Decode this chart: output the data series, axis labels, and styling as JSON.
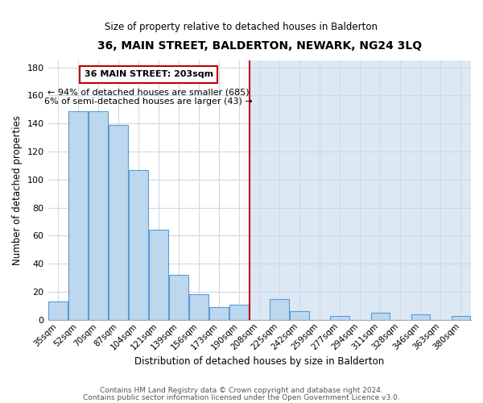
{
  "title": "36, MAIN STREET, BALDERTON, NEWARK, NG24 3LQ",
  "subtitle": "Size of property relative to detached houses in Balderton",
  "xlabel": "Distribution of detached houses by size in Balderton",
  "ylabel": "Number of detached properties",
  "bar_labels": [
    "35sqm",
    "52sqm",
    "70sqm",
    "87sqm",
    "104sqm",
    "121sqm",
    "139sqm",
    "156sqm",
    "173sqm",
    "190sqm",
    "208sqm",
    "225sqm",
    "242sqm",
    "259sqm",
    "277sqm",
    "294sqm",
    "311sqm",
    "328sqm",
    "346sqm",
    "363sqm",
    "380sqm"
  ],
  "bar_heights": [
    13,
    149,
    149,
    139,
    107,
    64,
    32,
    18,
    9,
    11,
    0,
    15,
    6,
    0,
    3,
    0,
    5,
    0,
    4,
    0,
    3
  ],
  "bar_color": "#bdd7ee",
  "bar_edge_color": "#5b9bd5",
  "bar_color_right": "#dce9f5",
  "ylim": [
    0,
    185
  ],
  "yticks": [
    0,
    20,
    40,
    60,
    80,
    100,
    120,
    140,
    160,
    180
  ],
  "vline_x": 9.5,
  "vline_color": "#c00000",
  "annotation_title": "36 MAIN STREET: 203sqm",
  "annotation_line1": "← 94% of detached houses are smaller (685)",
  "annotation_line2": "6% of semi-detached houses are larger (43) →",
  "annotation_box_color": "#ffffff",
  "annotation_box_edge": "#c00000",
  "footer1": "Contains HM Land Registry data © Crown copyright and database right 2024.",
  "footer2": "Contains public sector information licensed under the Open Government Licence v3.0.",
  "background_color": "#ffffff",
  "grid_color": "#d0d8e4"
}
